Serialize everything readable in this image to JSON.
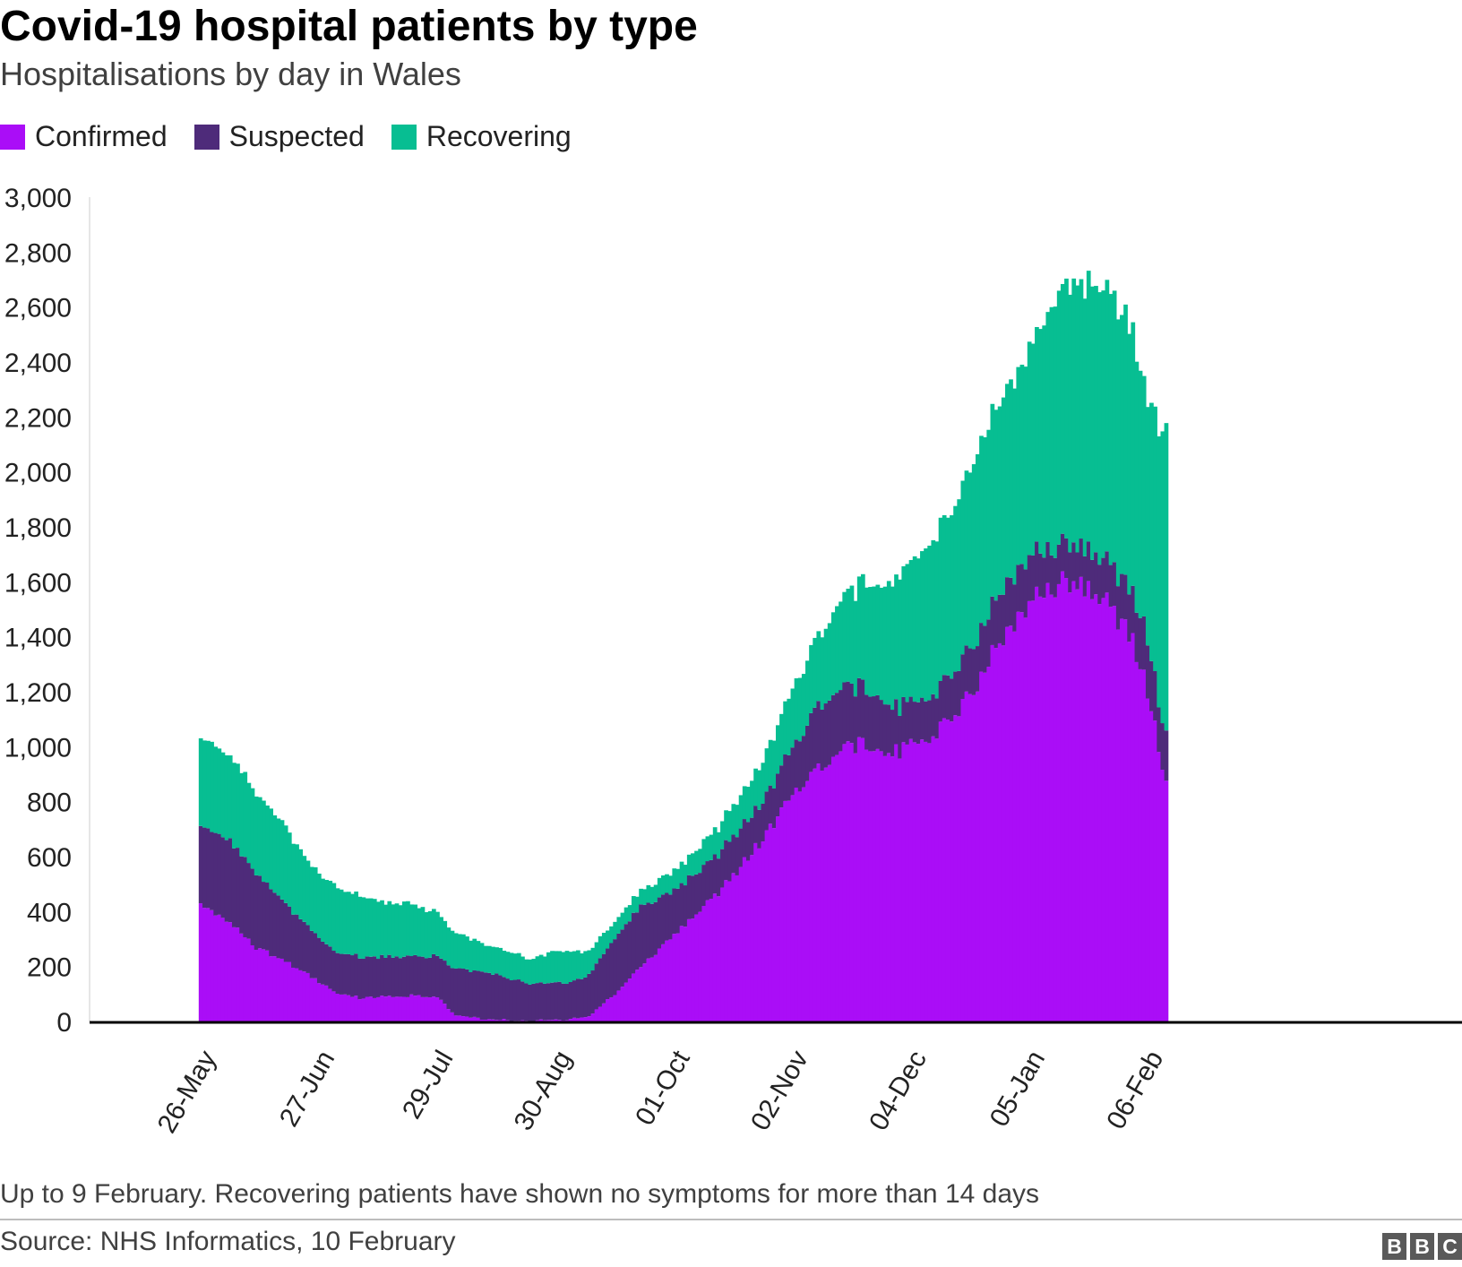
{
  "title": "Covid-19 hospital patients by type",
  "subtitle": "Hospitalisations by day in Wales",
  "legend": [
    {
      "label": "Confirmed",
      "color": "#aa0df7"
    },
    {
      "label": "Suspected",
      "color": "#4e2b7a"
    },
    {
      "label": "Recovering",
      "color": "#07be92"
    }
  ],
  "note": "Up to 9 February. Recovering patients have shown no symptoms for more than 14 days",
  "source": "Source: NHS Informatics, 10 February",
  "logo": [
    "B",
    "B",
    "C"
  ],
  "chart_data": {
    "type": "area",
    "stacked": true,
    "x_start": "2020-04-24",
    "x_end": "2021-04-30",
    "ylim": [
      0,
      3000
    ],
    "yticks": [
      0,
      200,
      400,
      600,
      800,
      1000,
      1200,
      1400,
      1600,
      1800,
      2000,
      2200,
      2400,
      2600,
      2800,
      3000
    ],
    "ytick_labels": [
      "0",
      "200",
      "400",
      "600",
      "800",
      "1,000",
      "1,200",
      "1,400",
      "1,600",
      "1,800",
      "2,000",
      "2,200",
      "2,400",
      "2,600",
      "2,800",
      "3,000"
    ],
    "xticks": [
      {
        "date": "2020-05-26",
        "label": "26-May"
      },
      {
        "date": "2020-06-27",
        "label": "27-Jun"
      },
      {
        "date": "2020-07-29",
        "label": "29-Jul"
      },
      {
        "date": "2020-08-30",
        "label": "30-Aug"
      },
      {
        "date": "2020-10-01",
        "label": "01-Oct"
      },
      {
        "date": "2020-11-02",
        "label": "02-Nov"
      },
      {
        "date": "2020-12-04",
        "label": "04-Dec"
      },
      {
        "date": "2021-01-05",
        "label": "05-Jan"
      },
      {
        "date": "2021-02-06",
        "label": "06-Feb"
      }
    ],
    "grid": false,
    "legend_position": "top-left",
    "series_anchors": [
      {
        "name": "Confirmed",
        "color": "#aa0df7",
        "points": [
          [
            "2020-05-24",
            430
          ],
          [
            "2020-06-01",
            360
          ],
          [
            "2020-06-08",
            270
          ],
          [
            "2020-06-15",
            230
          ],
          [
            "2020-06-22",
            170
          ],
          [
            "2020-06-29",
            110
          ],
          [
            "2020-07-06",
            85
          ],
          [
            "2020-07-13",
            90
          ],
          [
            "2020-07-20",
            95
          ],
          [
            "2020-07-27",
            90
          ],
          [
            "2020-08-01",
            20
          ],
          [
            "2020-08-10",
            8
          ],
          [
            "2020-08-20",
            3
          ],
          [
            "2020-08-30",
            5
          ],
          [
            "2020-09-06",
            20
          ],
          [
            "2020-09-13",
            100
          ],
          [
            "2020-09-20",
            200
          ],
          [
            "2020-09-27",
            290
          ],
          [
            "2020-10-04",
            380
          ],
          [
            "2020-10-11",
            470
          ],
          [
            "2020-10-18",
            580
          ],
          [
            "2020-10-25",
            700
          ],
          [
            "2020-11-01",
            850
          ],
          [
            "2020-11-08",
            940
          ],
          [
            "2020-11-15",
            1000
          ],
          [
            "2020-11-22",
            1010
          ],
          [
            "2020-11-29",
            980
          ],
          [
            "2020-12-06",
            1020
          ],
          [
            "2020-12-13",
            1100
          ],
          [
            "2020-12-20",
            1230
          ],
          [
            "2020-12-27",
            1400
          ],
          [
            "2021-01-03",
            1520
          ],
          [
            "2021-01-10",
            1590
          ],
          [
            "2021-01-17",
            1600
          ],
          [
            "2021-01-24",
            1530
          ],
          [
            "2021-01-31",
            1380
          ],
          [
            "2021-02-04",
            1200
          ],
          [
            "2021-02-07",
            1000
          ],
          [
            "2021-02-09",
            860
          ]
        ]
      },
      {
        "name": "Suspected",
        "color": "#4e2b7a",
        "points": [
          [
            "2020-05-24",
            290
          ],
          [
            "2020-06-01",
            300
          ],
          [
            "2020-06-08",
            270
          ],
          [
            "2020-06-15",
            220
          ],
          [
            "2020-06-22",
            170
          ],
          [
            "2020-06-29",
            150
          ],
          [
            "2020-07-06",
            150
          ],
          [
            "2020-07-13",
            145
          ],
          [
            "2020-07-20",
            145
          ],
          [
            "2020-07-27",
            150
          ],
          [
            "2020-08-01",
            170
          ],
          [
            "2020-08-10",
            170
          ],
          [
            "2020-08-20",
            140
          ],
          [
            "2020-08-30",
            130
          ],
          [
            "2020-09-06",
            150
          ],
          [
            "2020-09-13",
            200
          ],
          [
            "2020-09-20",
            220
          ],
          [
            "2020-09-27",
            170
          ],
          [
            "2020-10-04",
            150
          ],
          [
            "2020-10-11",
            140
          ],
          [
            "2020-10-18",
            140
          ],
          [
            "2020-10-25",
            140
          ],
          [
            "2020-11-01",
            180
          ],
          [
            "2020-11-08",
            230
          ],
          [
            "2020-11-15",
            220
          ],
          [
            "2020-11-22",
            200
          ],
          [
            "2020-11-29",
            160
          ],
          [
            "2020-12-06",
            150
          ],
          [
            "2020-12-13",
            160
          ],
          [
            "2020-12-20",
            170
          ],
          [
            "2020-12-27",
            180
          ],
          [
            "2021-01-03",
            170
          ],
          [
            "2021-01-10",
            140
          ],
          [
            "2021-01-17",
            140
          ],
          [
            "2021-01-24",
            150
          ],
          [
            "2021-01-31",
            170
          ],
          [
            "2021-02-04",
            200
          ],
          [
            "2021-02-07",
            160
          ],
          [
            "2021-02-09",
            180
          ]
        ]
      },
      {
        "name": "Recovering",
        "color": "#07be92",
        "points": [
          [
            "2020-05-24",
            320
          ],
          [
            "2020-06-01",
            310
          ],
          [
            "2020-06-08",
            290
          ],
          [
            "2020-06-15",
            290
          ],
          [
            "2020-06-22",
            230
          ],
          [
            "2020-06-29",
            240
          ],
          [
            "2020-07-06",
            220
          ],
          [
            "2020-07-13",
            200
          ],
          [
            "2020-07-20",
            190
          ],
          [
            "2020-07-27",
            160
          ],
          [
            "2020-08-01",
            130
          ],
          [
            "2020-08-10",
            100
          ],
          [
            "2020-08-20",
            90
          ],
          [
            "2020-08-30",
            120
          ],
          [
            "2020-09-06",
            90
          ],
          [
            "2020-09-13",
            60
          ],
          [
            "2020-09-20",
            60
          ],
          [
            "2020-09-27",
            70
          ],
          [
            "2020-10-04",
            80
          ],
          [
            "2020-10-11",
            100
          ],
          [
            "2020-10-18",
            120
          ],
          [
            "2020-10-25",
            160
          ],
          [
            "2020-11-01",
            220
          ],
          [
            "2020-11-08",
            260
          ],
          [
            "2020-11-15",
            340
          ],
          [
            "2020-11-22",
            400
          ],
          [
            "2020-11-29",
            480
          ],
          [
            "2020-12-06",
            550
          ],
          [
            "2020-12-13",
            600
          ],
          [
            "2020-12-20",
            680
          ],
          [
            "2020-12-27",
            700
          ],
          [
            "2021-01-03",
            760
          ],
          [
            "2021-01-10",
            900
          ],
          [
            "2021-01-17",
            960
          ],
          [
            "2021-01-24",
            1000
          ],
          [
            "2021-01-31",
            950
          ],
          [
            "2021-02-04",
            880
          ],
          [
            "2021-02-07",
            1000
          ],
          [
            "2021-02-09",
            1100
          ]
        ]
      }
    ]
  }
}
